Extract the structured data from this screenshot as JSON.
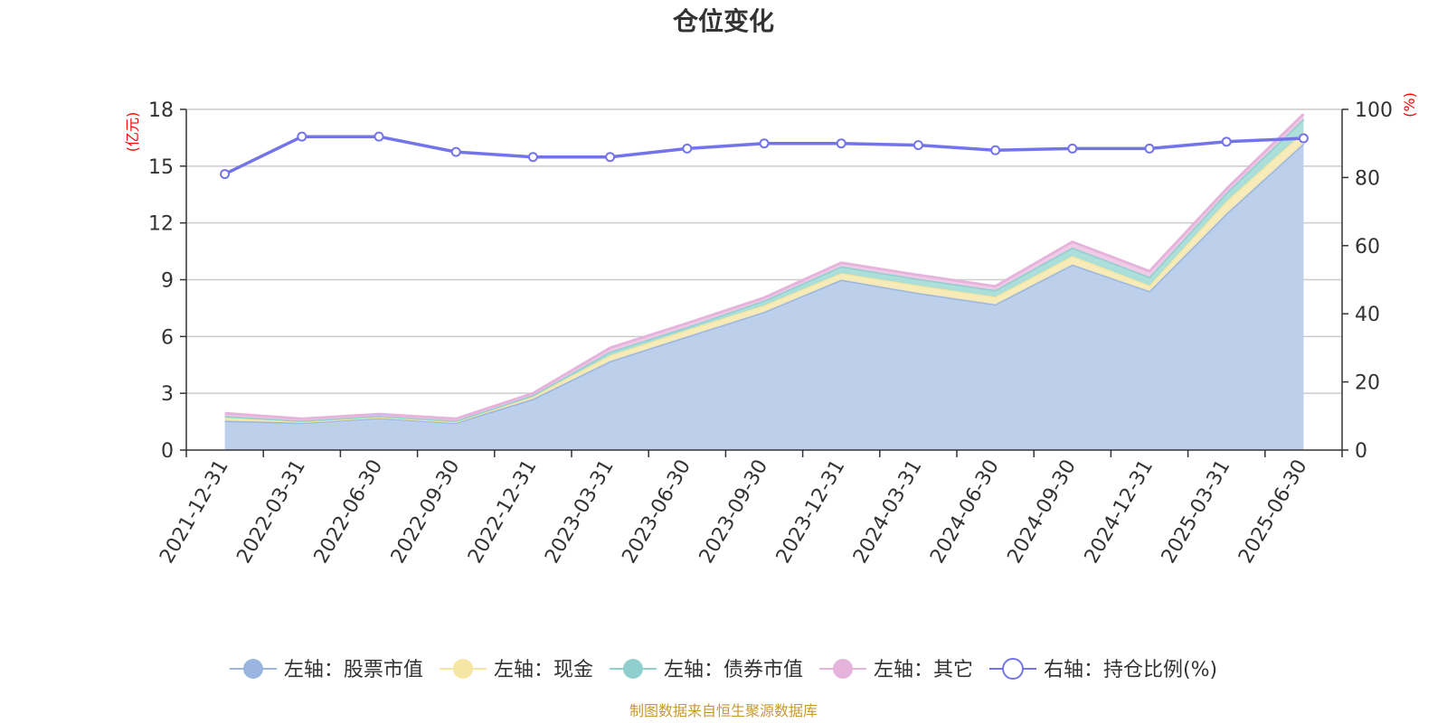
{
  "chart_data": {
    "type": "area",
    "title": "仓位变化",
    "left_axis_unit": "(亿元)",
    "right_axis_unit": "(%)",
    "ylim_left": [
      0,
      18
    ],
    "yticks_left": [
      "0",
      "3",
      "6",
      "9",
      "12",
      "15",
      "18"
    ],
    "ylim_right": [
      0,
      100
    ],
    "yticks_right": [
      "0",
      "20",
      "40",
      "60",
      "80",
      "100"
    ],
    "categories": [
      "2021-12-31",
      "2022-03-31",
      "2022-06-30",
      "2022-09-30",
      "2022-12-31",
      "2023-03-31",
      "2023-06-30",
      "2023-09-30",
      "2023-12-31",
      "2024-03-31",
      "2024-06-30",
      "2024-09-30",
      "2024-12-31",
      "2025-03-31",
      "2025-06-30"
    ],
    "stacked_series": [
      {
        "name": "左轴：股票市值",
        "color": "#9ab5e0",
        "fill": "#b8cdea",
        "values": [
          1.55,
          1.45,
          1.7,
          1.45,
          2.7,
          4.7,
          6.0,
          7.3,
          9.0,
          8.3,
          7.7,
          9.8,
          8.4,
          12.5,
          16.2
        ]
      },
      {
        "name": "左轴：现金",
        "color": "#f5e6a3",
        "fill": "#f7eab5",
        "values": [
          0.15,
          0.05,
          0.05,
          0.05,
          0.15,
          0.3,
          0.35,
          0.35,
          0.35,
          0.4,
          0.4,
          0.45,
          0.3,
          0.65,
          0.6
        ]
      },
      {
        "name": "左轴：债券市值",
        "color": "#8fd0cf",
        "fill": "#a8dcd8",
        "values": [
          0.1,
          0.05,
          0.05,
          0.05,
          0.05,
          0.2,
          0.15,
          0.25,
          0.35,
          0.35,
          0.35,
          0.45,
          0.45,
          0.45,
          0.7
        ]
      },
      {
        "name": "左轴：其它",
        "color": "#e6b3dc",
        "fill": "#efc9e6",
        "values": [
          0.15,
          0.1,
          0.1,
          0.1,
          0.1,
          0.2,
          0.2,
          0.15,
          0.2,
          0.2,
          0.2,
          0.3,
          0.3,
          0.2,
          0.25
        ]
      }
    ],
    "line_series": {
      "name": "右轴：持仓比例(%)",
      "color": "#7474ea",
      "values": [
        81,
        92,
        92,
        87.5,
        86,
        86,
        88.5,
        90,
        90,
        89.5,
        88,
        88.5,
        88.5,
        90.5,
        91.5
      ]
    },
    "grid": true,
    "legend_position": "bottom"
  },
  "footer": {
    "source": "制图数据来自恒生聚源数据库"
  }
}
